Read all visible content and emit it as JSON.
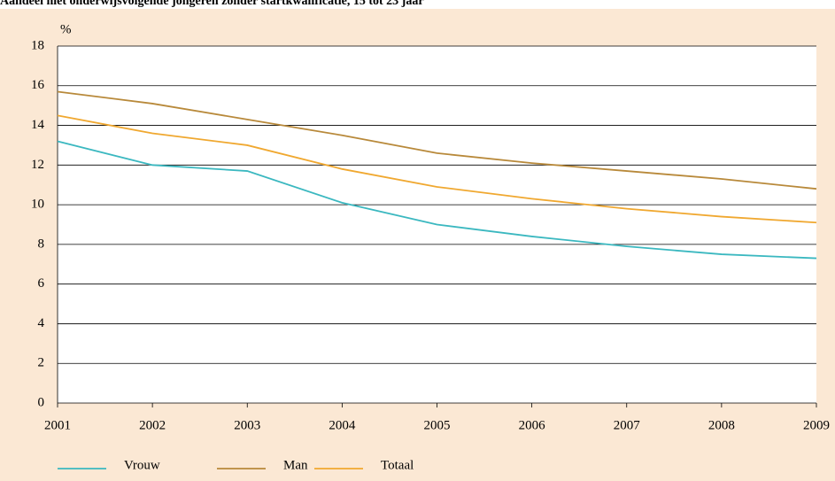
{
  "chart_data": {
    "type": "line",
    "title": "Aandeel niet onderwijsvolgende jongeren zonder startkwalificatie, 15 tot 23 jaar",
    "y_label": "%",
    "x": [
      2001,
      2002,
      2003,
      2004,
      2005,
      2006,
      2007,
      2008,
      2009
    ],
    "xlim": [
      2001,
      2009
    ],
    "xticks": [
      2001,
      2002,
      2003,
      2004,
      2005,
      2006,
      2007,
      2008,
      2009
    ],
    "ylim": [
      0,
      18
    ],
    "yticks": [
      0,
      2,
      4,
      6,
      8,
      10,
      12,
      14,
      16,
      18
    ],
    "grid": true,
    "legend": "bottom",
    "series": [
      {
        "name": "Vrouw",
        "color": "#3bb8c0",
        "values": [
          13.2,
          12.0,
          11.7,
          10.1,
          9.0,
          8.4,
          7.9,
          7.5,
          7.3
        ]
      },
      {
        "name": "Man",
        "color": "#b8893a",
        "values": [
          15.7,
          15.1,
          14.3,
          13.5,
          12.6,
          12.1,
          11.7,
          11.3,
          10.8
        ]
      },
      {
        "name": "Totaal",
        "color": "#f0a830",
        "values": [
          14.5,
          13.6,
          13.0,
          11.8,
          10.9,
          10.3,
          9.8,
          9.4,
          9.1
        ]
      }
    ]
  }
}
